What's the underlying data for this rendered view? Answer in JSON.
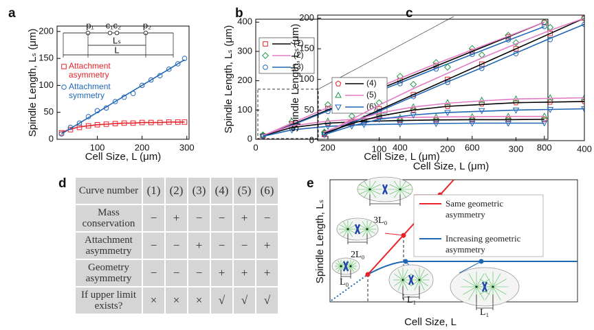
{
  "chart_data": [
    {
      "type": "scatter",
      "panel_label": "a",
      "xlabel": "Cell Size, L (μm)",
      "ylabel": "Spindle Length, Lₛ (μm)",
      "xlim": [
        10,
        305
      ],
      "ylim": [
        0,
        210
      ],
      "xticks": [
        100,
        200,
        300
      ],
      "yticks": [
        0,
        50,
        100,
        150,
        200
      ],
      "legend": "center left",
      "annotations": {
        "p1": "p₁",
        "c1c2": "c₁c₂",
        "p2": "p₂",
        "Ls": "Lₛ",
        "L": "L"
      },
      "series": [
        {
          "name": "Attachment asymmetry",
          "marker": "square",
          "color": "#e8222a",
          "line_color": "#e8222a",
          "x": [
            20,
            40,
            60,
            80,
            100,
            120,
            140,
            160,
            180,
            200,
            220,
            240,
            260,
            280,
            295
          ],
          "values": [
            12,
            18,
            22,
            25,
            27,
            28,
            29,
            30,
            30,
            31,
            31,
            31,
            32,
            32,
            32
          ],
          "fit": [
            13,
            19,
            23,
            25,
            27,
            28,
            29,
            30,
            30,
            31,
            31,
            31,
            32,
            32,
            32
          ]
        },
        {
          "name": "Attachment symmetry",
          "marker": "circle",
          "color": "#1f66b5",
          "line_color": "#1f66b5",
          "x": [
            20,
            40,
            60,
            80,
            100,
            120,
            140,
            160,
            180,
            200,
            220,
            240,
            260,
            280,
            295
          ],
          "values": [
            10,
            22,
            30,
            42,
            53,
            58,
            70,
            78,
            85,
            100,
            110,
            118,
            130,
            140,
            150
          ],
          "fit": [
            10,
            20,
            30,
            40,
            50,
            60,
            70,
            80,
            90,
            100,
            110,
            120,
            130,
            140,
            147.5
          ]
        }
      ]
    },
    {
      "type": "scatter",
      "panel_label": "b",
      "xlabel": "Cell Size, L (μm)",
      "ylabel": "Spindle Length, Lₛ (μm)",
      "xlim": [
        0,
        810
      ],
      "ylim": [
        0,
        410
      ],
      "xticks": [
        0,
        200,
        400,
        600,
        800
      ],
      "yticks": [
        0,
        100,
        200,
        300,
        400
      ],
      "legend": "upper left",
      "series": [
        {
          "name": "(1)",
          "marker": "square",
          "color": "#e8222a",
          "line_color": "#000000",
          "x": [
            20,
            100,
            200,
            300,
            400,
            500,
            600,
            700,
            800
          ],
          "values": [
            12,
            52,
            105,
            150,
            200,
            252,
            300,
            350,
            398
          ],
          "fit": [
            10,
            50,
            100,
            150,
            200,
            250,
            300,
            350,
            400
          ]
        },
        {
          "name": "(2)",
          "marker": "diamond",
          "color": "#1a9a47",
          "line_color": "#e27bc4",
          "x": [
            20,
            100,
            200,
            300,
            400,
            500,
            600,
            700,
            800
          ],
          "values": [
            15,
            60,
            118,
            165,
            215,
            262,
            310,
            355,
            400
          ],
          "fit": [
            12,
            55,
            108,
            158,
            208,
            258,
            305,
            352,
            400
          ]
        },
        {
          "name": "(3)",
          "marker": "circle",
          "color": "#1f66b5",
          "line_color": "#1f66b5",
          "x": [
            20,
            100,
            200,
            300,
            400,
            500,
            600,
            700,
            800
          ],
          "values": [
            10,
            45,
            95,
            140,
            190,
            240,
            290,
            340,
            385
          ],
          "fit": [
            10,
            48,
            97,
            145,
            193,
            242,
            290,
            338,
            385
          ]
        },
        {
          "name": "(4)",
          "marker": "pentagon",
          "color": "#e8222a",
          "line_color": "#000000",
          "x": [
            20,
            100,
            200,
            300,
            400,
            500,
            600,
            700,
            800
          ],
          "values": [
            12,
            40,
            55,
            62,
            65,
            66,
            67,
            68,
            68
          ],
          "fit": [
            12,
            40,
            55,
            61,
            64,
            66,
            67,
            67,
            68
          ]
        },
        {
          "name": "(5)",
          "marker": "triangle",
          "color": "#1a9a47",
          "line_color": "#e27bc4",
          "x": [
            20,
            100,
            200,
            300,
            400,
            500,
            600,
            700,
            800
          ],
          "values": [
            14,
            45,
            62,
            70,
            74,
            76,
            77,
            78,
            79
          ],
          "fit": [
            14,
            46,
            62,
            70,
            74,
            76,
            77,
            78,
            78
          ]
        },
        {
          "name": "(6)",
          "marker": "triangle-down",
          "color": "#1f66b5",
          "line_color": "#1f66b5",
          "x": [
            20,
            100,
            200,
            300,
            400,
            500,
            600,
            700,
            800
          ],
          "values": [
            10,
            32,
            45,
            50,
            53,
            54,
            55,
            55,
            56
          ],
          "fit": [
            10,
            32,
            44,
            50,
            52,
            54,
            55,
            55,
            55
          ]
        }
      ]
    },
    {
      "type": "scatter",
      "panel_label": "c",
      "xlabel": "Cell Size, L (μm)",
      "ylabel": "Spindle Length, Lₛ (μm)",
      "xlim": [
        10,
        400
      ],
      "ylim": [
        0,
        205
      ],
      "xticks": [
        100,
        200,
        300,
        400
      ],
      "yticks": [
        0,
        50,
        100,
        150,
        200
      ],
      "legend": "none",
      "series": [
        {
          "name": "(1)",
          "marker": "square",
          "color": "#e8222a",
          "line_color": "#000000",
          "x": [
            20,
            60,
            100,
            150,
            200,
            250,
            300,
            350,
            400
          ],
          "values": [
            10,
            30,
            52,
            75,
            100,
            125,
            150,
            175,
            200
          ],
          "fit": [
            10,
            30,
            50,
            75,
            100,
            125,
            150,
            175,
            200
          ]
        },
        {
          "name": "(2)",
          "marker": "diamond",
          "color": "#1a9a47",
          "line_color": "#e27bc4",
          "x": [
            20,
            60,
            100,
            150,
            200,
            250,
            300,
            350,
            400
          ],
          "values": [
            14,
            40,
            62,
            92,
            120,
            140,
            160,
            185,
            200
          ],
          "fit": [
            12,
            35,
            58,
            85,
            110,
            135,
            158,
            180,
            200
          ]
        },
        {
          "name": "(3)",
          "marker": "circle",
          "color": "#1f66b5",
          "line_color": "#1f66b5",
          "x": [
            20,
            60,
            100,
            150,
            200,
            250,
            300,
            350,
            400
          ],
          "values": [
            10,
            28,
            48,
            72,
            95,
            118,
            142,
            165,
            190
          ],
          "fit": [
            10,
            29,
            48,
            72,
            96,
            119,
            143,
            167,
            190
          ]
        },
        {
          "name": "(4)",
          "marker": "pentagon",
          "color": "#e8222a",
          "line_color": "#000000",
          "x": [
            20,
            60,
            100,
            150,
            200,
            250,
            300,
            350,
            400
          ],
          "values": [
            12,
            28,
            40,
            50,
            56,
            60,
            62,
            63,
            64
          ],
          "fit": [
            12,
            28,
            40,
            50,
            56,
            59,
            62,
            63,
            64
          ]
        },
        {
          "name": "(5)",
          "marker": "triangle",
          "color": "#1a9a47",
          "line_color": "#e27bc4",
          "x": [
            20,
            60,
            100,
            150,
            200,
            250,
            300,
            350,
            400
          ],
          "values": [
            14,
            32,
            45,
            55,
            62,
            66,
            68,
            70,
            70
          ],
          "fit": [
            14,
            32,
            45,
            55,
            61,
            65,
            68,
            69,
            70
          ]
        },
        {
          "name": "(6)",
          "marker": "triangle-down",
          "color": "#1f66b5",
          "line_color": "#1f66b5",
          "x": [
            20,
            60,
            100,
            150,
            200,
            250,
            300,
            350,
            400
          ],
          "values": [
            10,
            24,
            35,
            42,
            46,
            49,
            50,
            51,
            52
          ],
          "fit": [
            10,
            24,
            35,
            42,
            46,
            48,
            50,
            51,
            52
          ]
        }
      ]
    }
  ],
  "table": {
    "panel_label": "d",
    "header": [
      "Curve number",
      "(1)",
      "(2)",
      "(3)",
      "(4)",
      "(5)",
      "(6)"
    ],
    "rows": [
      [
        "Mass conservation",
        "−",
        "+",
        "−",
        "−",
        "+",
        "−"
      ],
      [
        "Attachment asymmetry",
        "−",
        "−",
        "+",
        "−",
        "−",
        "+"
      ],
      [
        "Geometry asymmetry",
        "−",
        "−",
        "−",
        "+",
        "+",
        "+"
      ],
      [
        "If upper limit exists?",
        "×",
        "×",
        "×",
        "√",
        "√",
        "√"
      ]
    ]
  },
  "diagram": {
    "panel_label": "e",
    "y_label": "Spindle Length, Lₛ",
    "x_label": "Cell Size, L",
    "legend": [
      "Same geometric asymmetry",
      "Increasing geometric asymmetry"
    ],
    "labels": [
      "3L₀",
      "2L₀",
      "L₀",
      "L₁",
      "L₁"
    ]
  }
}
